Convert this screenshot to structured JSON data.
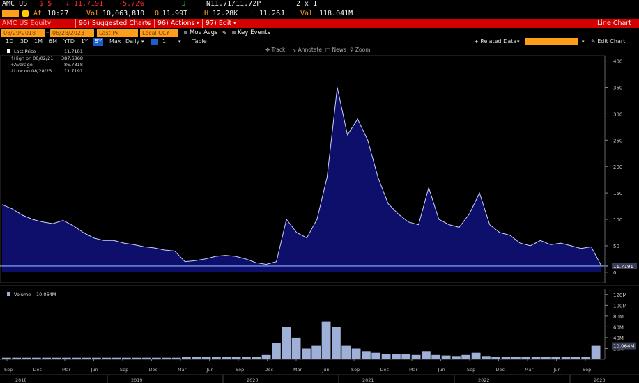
{
  "header": {
    "ticker": "AMC US",
    "currency": "$ $",
    "last_price": "↓ 11.7191",
    "change_pct": "-5.72%",
    "pct_marker": "J",
    "bid_ask": "N11.71/11.72P",
    "size": "2 x 1",
    "at_label": "At",
    "time": "10:27",
    "vol_label": "Vol",
    "volume": "10,063,810",
    "open_label": "O",
    "open": "11.99T",
    "high_label": "H",
    "high": "12.28K",
    "low_label": "L",
    "low": "11.26J",
    "val_label": "Val",
    "value": "118.041M"
  },
  "toolbar": {
    "security": "AMC US Equity",
    "suggested_charts": "96) Suggested Charts",
    "actions": "96) Actions",
    "edit": "97) Edit",
    "chart_type": "Line Chart"
  },
  "settings": {
    "start_date": "08/29/2018",
    "end_date": "08/28/2023",
    "price_field": "Last Px",
    "currency": "Local CCY",
    "mov_avgs": "Mov Avgs",
    "key_events": "Key Events"
  },
  "periods": {
    "items": [
      "1D",
      "3D",
      "1M",
      "6M",
      "YTD",
      "1Y",
      "5Y",
      "Max"
    ],
    "selected": "5Y",
    "frequency": "Daily",
    "table": "Table",
    "related_data": "Related Data",
    "edit_chart": "Edit Chart"
  },
  "tools": [
    "Track",
    "Annotate",
    "News",
    "Zoom"
  ],
  "legend": {
    "last_price_label": "Last Price",
    "last_price": "11.7191",
    "high_label": "High on 06/02/21",
    "high": "387.6868",
    "average_label": "Average",
    "average": "86.7318",
    "low_label": "Low on 08/28/23",
    "low": "11.7191",
    "volume_label": "Volume",
    "volume": "10.064M"
  },
  "chart_data": [
    {
      "type": "area",
      "title": "",
      "x": [
        "2018-09",
        "2018-10",
        "2018-11",
        "2018-12",
        "2019-01",
        "2019-02",
        "2019-03",
        "2019-04",
        "2019-05",
        "2019-06",
        "2019-07",
        "2019-08",
        "2019-09",
        "2019-10",
        "2019-11",
        "2019-12",
        "2020-01",
        "2020-02",
        "2020-03",
        "2020-04",
        "2020-05",
        "2020-06",
        "2020-07",
        "2020-08",
        "2020-09",
        "2020-10",
        "2020-11",
        "2020-12",
        "2021-01",
        "2021-02",
        "2021-03",
        "2021-04",
        "2021-05",
        "2021-06",
        "2021-07",
        "2021-08",
        "2021-09",
        "2021-10",
        "2021-11",
        "2021-12",
        "2022-01",
        "2022-02",
        "2022-03",
        "2022-04",
        "2022-05",
        "2022-06",
        "2022-07",
        "2022-08",
        "2022-09",
        "2022-10",
        "2022-11",
        "2022-12",
        "2023-01",
        "2023-02",
        "2023-03",
        "2023-04",
        "2023-05",
        "2023-06",
        "2023-07",
        "2023-08"
      ],
      "values": [
        128,
        120,
        108,
        100,
        95,
        92,
        98,
        88,
        75,
        65,
        60,
        60,
        55,
        52,
        48,
        46,
        42,
        40,
        20,
        22,
        25,
        30,
        32,
        30,
        25,
        18,
        15,
        20,
        100,
        75,
        65,
        100,
        180,
        350,
        260,
        290,
        250,
        180,
        130,
        110,
        95,
        90,
        160,
        100,
        90,
        85,
        110,
        150,
        90,
        75,
        70,
        55,
        50,
        60,
        52,
        55,
        50,
        45,
        48,
        12
      ],
      "last": 11.7191,
      "high": 387.6868,
      "average": 86.7318,
      "low": 11.7191,
      "ylim": [
        -20,
        410
      ],
      "yticks": [
        0,
        50,
        100,
        150,
        200,
        250,
        300,
        350,
        400
      ],
      "line_color": "#c8d2ff",
      "fill_color": "#0e0f6b"
    },
    {
      "type": "bar",
      "series": [
        {
          "name": "Volume",
          "values": [
            3,
            3,
            3,
            3,
            3,
            3,
            3,
            3,
            3,
            3,
            3,
            3,
            3,
            3,
            3,
            3,
            3,
            3,
            4,
            5,
            4,
            4,
            4,
            5,
            4,
            4,
            8,
            30,
            60,
            40,
            20,
            25,
            70,
            60,
            25,
            20,
            15,
            12,
            10,
            10,
            10,
            8,
            15,
            8,
            7,
            6,
            8,
            12,
            6,
            5,
            5,
            4,
            4,
            4,
            4,
            4,
            4,
            4,
            5,
            25
          ]
        }
      ],
      "ylim": [
        0,
        130
      ],
      "yticks": [
        "20M",
        "40M",
        "60M",
        "80M",
        "100M",
        "120M"
      ],
      "unit": "M",
      "last_label": "10.064M",
      "color": "#9fb0d8"
    }
  ],
  "x_axis": {
    "months": [
      "Sep",
      "Dec",
      "Mar",
      "Jun",
      "Sep",
      "Dec",
      "Mar",
      "Jun",
      "Sep",
      "Dec",
      "Mar",
      "Jun",
      "Sep",
      "Dec",
      "Mar",
      "Jun",
      "Sep",
      "Dec",
      "Mar",
      "Jun",
      "Sep"
    ],
    "years": [
      "2018",
      "2019",
      "2020",
      "2021",
      "2022",
      "2023"
    ]
  }
}
